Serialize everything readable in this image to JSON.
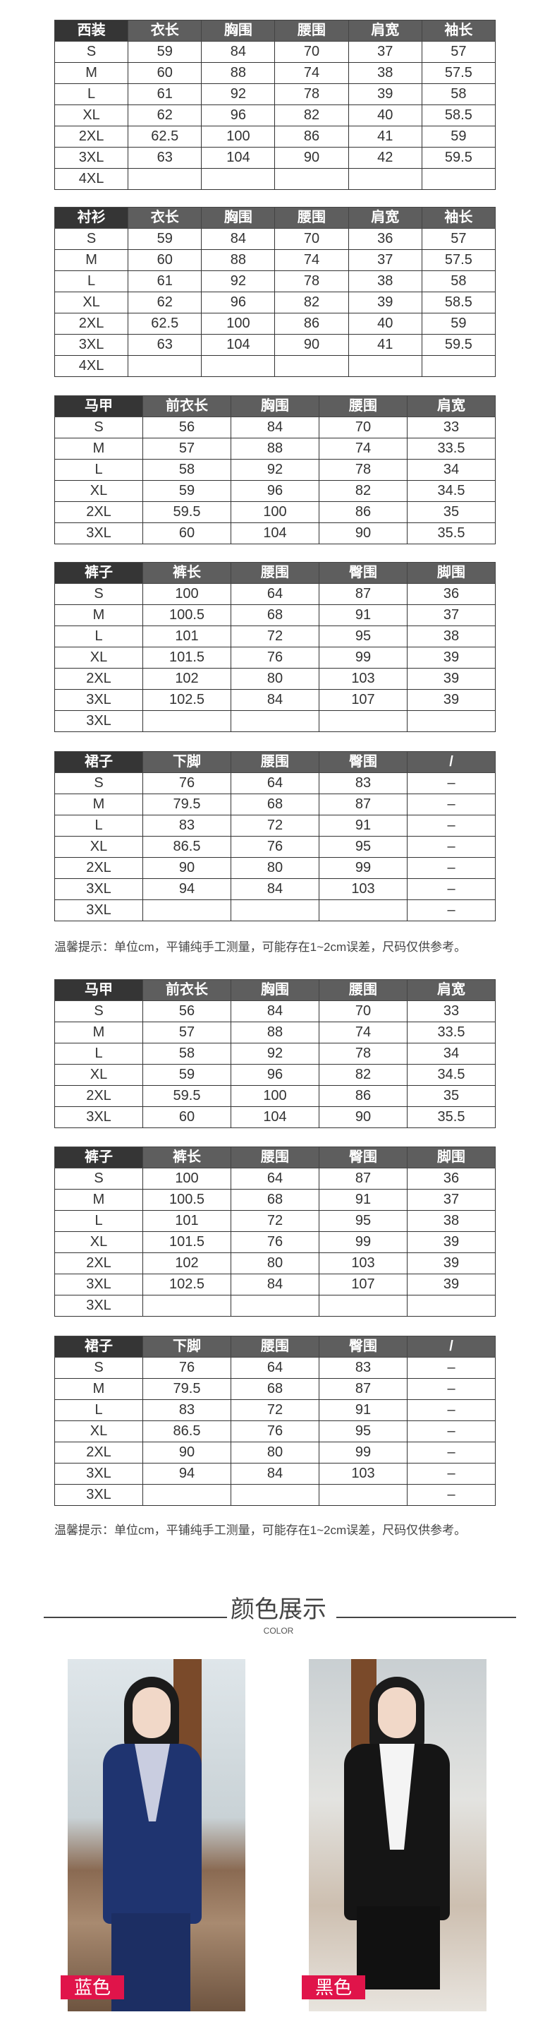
{
  "tables": [
    {
      "headers": [
        "西装",
        "衣长",
        "胸围",
        "腰围",
        "肩宽",
        "袖长"
      ],
      "rows": [
        [
          "S",
          "59",
          "84",
          "70",
          "37",
          "57"
        ],
        [
          "M",
          "60",
          "88",
          "74",
          "38",
          "57.5"
        ],
        [
          "L",
          "61",
          "92",
          "78",
          "39",
          "58"
        ],
        [
          "XL",
          "62",
          "96",
          "82",
          "40",
          "58.5"
        ],
        [
          "2XL",
          "62.5",
          "100",
          "86",
          "41",
          "59"
        ],
        [
          "3XL",
          "63",
          "104",
          "90",
          "42",
          "59.5"
        ],
        [
          "4XL",
          "",
          "",
          "",
          "",
          ""
        ]
      ]
    },
    {
      "headers": [
        "衬衫",
        "衣长",
        "胸围",
        "腰围",
        "肩宽",
        "袖长"
      ],
      "rows": [
        [
          "S",
          "59",
          "84",
          "70",
          "36",
          "57"
        ],
        [
          "M",
          "60",
          "88",
          "74",
          "37",
          "57.5"
        ],
        [
          "L",
          "61",
          "92",
          "78",
          "38",
          "58"
        ],
        [
          "XL",
          "62",
          "96",
          "82",
          "39",
          "58.5"
        ],
        [
          "2XL",
          "62.5",
          "100",
          "86",
          "40",
          "59"
        ],
        [
          "3XL",
          "63",
          "104",
          "90",
          "41",
          "59.5"
        ],
        [
          "4XL",
          "",
          "",
          "",
          "",
          ""
        ]
      ]
    },
    {
      "headers": [
        "马甲",
        "前衣长",
        "胸围",
        "腰围",
        "肩宽"
      ],
      "rows": [
        [
          "S",
          "56",
          "84",
          "70",
          "33"
        ],
        [
          "M",
          "57",
          "88",
          "74",
          "33.5"
        ],
        [
          "L",
          "58",
          "92",
          "78",
          "34"
        ],
        [
          "XL",
          "59",
          "96",
          "82",
          "34.5"
        ],
        [
          "2XL",
          "59.5",
          "100",
          "86",
          "35"
        ],
        [
          "3XL",
          "60",
          "104",
          "90",
          "35.5"
        ]
      ]
    },
    {
      "headers": [
        "裤子",
        "裤长",
        "腰围",
        "臀围",
        "脚围"
      ],
      "rows": [
        [
          "S",
          "100",
          "64",
          "87",
          "36"
        ],
        [
          "M",
          "100.5",
          "68",
          "91",
          "37"
        ],
        [
          "L",
          "101",
          "72",
          "95",
          "38"
        ],
        [
          "XL",
          "101.5",
          "76",
          "99",
          "39"
        ],
        [
          "2XL",
          "102",
          "80",
          "103",
          "39"
        ],
        [
          "3XL",
          "102.5",
          "84",
          "107",
          "39"
        ],
        [
          "3XL",
          "",
          "",
          "",
          ""
        ]
      ]
    },
    {
      "headers": [
        "裙子",
        "下脚",
        "腰围",
        "臀围",
        "/"
      ],
      "rows": [
        [
          "S",
          "76",
          "64",
          "83",
          "–"
        ],
        [
          "M",
          "79.5",
          "68",
          "87",
          "–"
        ],
        [
          "L",
          "83",
          "72",
          "91",
          "–"
        ],
        [
          "XL",
          "86.5",
          "76",
          "95",
          "–"
        ],
        [
          "2XL",
          "90",
          "80",
          "99",
          "–"
        ],
        [
          "3XL",
          "94",
          "84",
          "103",
          "–"
        ],
        [
          "3XL",
          "",
          "",
          "",
          "–"
        ]
      ]
    },
    {
      "headers": [
        "马甲",
        "前衣长",
        "胸围",
        "腰围",
        "肩宽"
      ],
      "rows": [
        [
          "S",
          "56",
          "84",
          "70",
          "33"
        ],
        [
          "M",
          "57",
          "88",
          "74",
          "33.5"
        ],
        [
          "L",
          "58",
          "92",
          "78",
          "34"
        ],
        [
          "XL",
          "59",
          "96",
          "82",
          "34.5"
        ],
        [
          "2XL",
          "59.5",
          "100",
          "86",
          "35"
        ],
        [
          "3XL",
          "60",
          "104",
          "90",
          "35.5"
        ]
      ]
    },
    {
      "headers": [
        "裤子",
        "裤长",
        "腰围",
        "臀围",
        "脚围"
      ],
      "rows": [
        [
          "S",
          "100",
          "64",
          "87",
          "36"
        ],
        [
          "M",
          "100.5",
          "68",
          "91",
          "37"
        ],
        [
          "L",
          "101",
          "72",
          "95",
          "38"
        ],
        [
          "XL",
          "101.5",
          "76",
          "99",
          "39"
        ],
        [
          "2XL",
          "102",
          "80",
          "103",
          "39"
        ],
        [
          "3XL",
          "102.5",
          "84",
          "107",
          "39"
        ],
        [
          "3XL",
          "",
          "",
          "",
          ""
        ]
      ]
    },
    {
      "headers": [
        "裙子",
        "下脚",
        "腰围",
        "臀围",
        "/"
      ],
      "rows": [
        [
          "S",
          "76",
          "64",
          "83",
          "–"
        ],
        [
          "M",
          "79.5",
          "68",
          "87",
          "–"
        ],
        [
          "L",
          "83",
          "72",
          "91",
          "–"
        ],
        [
          "XL",
          "86.5",
          "76",
          "95",
          "–"
        ],
        [
          "2XL",
          "90",
          "80",
          "99",
          "–"
        ],
        [
          "3XL",
          "94",
          "84",
          "103",
          "–"
        ],
        [
          "3XL",
          "",
          "",
          "",
          "–"
        ]
      ]
    }
  ],
  "notes": [
    "温馨提示：单位cm，平铺纯手工测量，可能存在1~2cm误差，尺码仅供参考。",
    "温馨提示：单位cm，平铺纯手工测量，可能存在1~2cm误差，尺码仅供参考。"
  ],
  "color_section": {
    "title": "颜色展示",
    "subtitle": "COLOR",
    "swatches": [
      {
        "label": "蓝色",
        "color": "#1f3470"
      },
      {
        "label": "黑色",
        "color": "#151515"
      }
    ],
    "tag_color": "#e0144a"
  }
}
